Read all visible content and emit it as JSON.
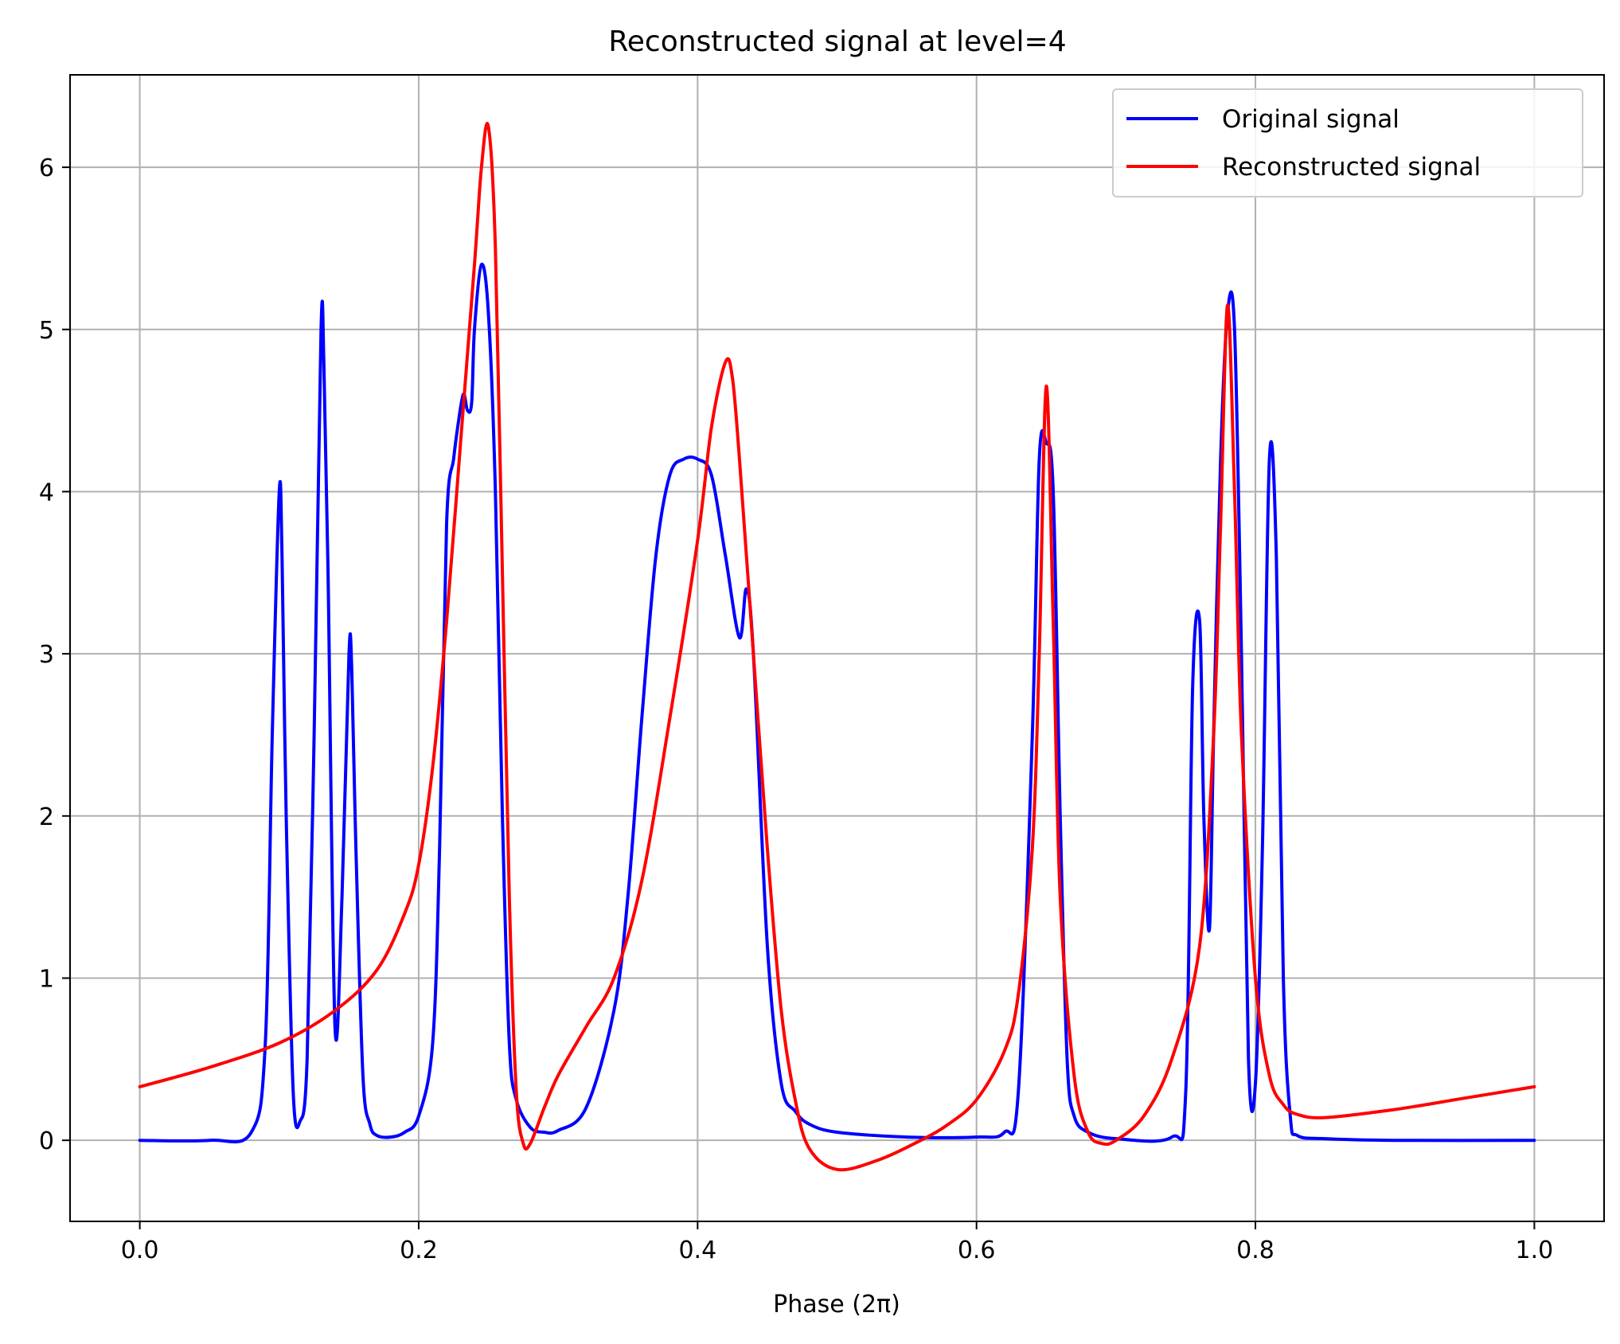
{
  "chart_data": {
    "type": "line",
    "title": "Reconstructed signal at level=4",
    "xlabel": "Phase (2π)",
    "ylabel": "",
    "xlim": [
      -0.05,
      1.05
    ],
    "ylim": [
      -0.5,
      6.57
    ],
    "xticks": [
      0.0,
      0.2,
      0.4,
      0.6,
      0.8,
      1.0
    ],
    "xtick_labels": [
      "0.0",
      "0.2",
      "0.4",
      "0.6",
      "0.8",
      "1.0"
    ],
    "yticks": [
      0,
      1,
      2,
      3,
      4,
      5,
      6
    ],
    "ytick_labels": [
      "0",
      "1",
      "2",
      "3",
      "4",
      "5",
      "6"
    ],
    "grid": true,
    "legend_position": "top-right",
    "series": [
      {
        "name": "Original signal",
        "color": "#0000ff",
        "x": [
          0.0,
          0.05,
          0.08,
          0.09,
          0.095,
          0.1,
          0.102,
          0.105,
          0.11,
          0.115,
          0.12,
          0.125,
          0.13,
          0.132,
          0.135,
          0.14,
          0.145,
          0.15,
          0.152,
          0.155,
          0.16,
          0.165,
          0.17,
          0.18,
          0.19,
          0.2,
          0.21,
          0.215,
          0.22,
          0.225,
          0.228,
          0.232,
          0.235,
          0.238,
          0.24,
          0.245,
          0.25,
          0.255,
          0.26,
          0.265,
          0.27,
          0.28,
          0.29,
          0.3,
          0.32,
          0.34,
          0.35,
          0.36,
          0.37,
          0.38,
          0.39,
          0.4,
          0.41,
          0.42,
          0.43,
          0.435,
          0.44,
          0.45,
          0.46,
          0.47,
          0.48,
          0.5,
          0.55,
          0.6,
          0.62,
          0.63,
          0.64,
          0.645,
          0.65,
          0.655,
          0.66,
          0.665,
          0.67,
          0.68,
          0.7,
          0.74,
          0.75,
          0.755,
          0.76,
          0.763,
          0.767,
          0.77,
          0.775,
          0.78,
          0.785,
          0.79,
          0.795,
          0.8,
          0.805,
          0.81,
          0.815,
          0.82,
          0.825,
          0.83,
          0.85,
          0.9,
          1.0
        ],
        "y": [
          0.0,
          0.0,
          0.05,
          0.6,
          2.5,
          4.0,
          3.6,
          2.0,
          0.3,
          0.12,
          0.5,
          2.5,
          5.0,
          4.8,
          3.5,
          0.7,
          1.5,
          3.0,
          2.9,
          1.8,
          0.4,
          0.1,
          0.03,
          0.02,
          0.05,
          0.15,
          0.6,
          1.8,
          3.8,
          4.2,
          4.4,
          4.6,
          4.5,
          4.55,
          5.0,
          5.4,
          5.1,
          4.0,
          2.0,
          0.6,
          0.25,
          0.08,
          0.05,
          0.06,
          0.2,
          0.8,
          1.5,
          2.6,
          3.6,
          4.1,
          4.2,
          4.2,
          4.1,
          3.6,
          3.1,
          3.4,
          3.0,
          1.2,
          0.35,
          0.18,
          0.1,
          0.05,
          0.02,
          0.02,
          0.05,
          0.3,
          2.5,
          4.2,
          4.3,
          4.0,
          2.0,
          0.5,
          0.15,
          0.05,
          0.01,
          0.02,
          0.3,
          2.8,
          3.2,
          2.0,
          1.3,
          2.5,
          4.2,
          5.1,
          5.0,
          3.0,
          0.5,
          0.35,
          1.8,
          4.2,
          3.6,
          1.0,
          0.15,
          0.03,
          0.01,
          0.0,
          0.0
        ]
      },
      {
        "name": "Reconstructed signal",
        "color": "#ff0000",
        "x": [
          0.0,
          0.05,
          0.1,
          0.14,
          0.17,
          0.19,
          0.2,
          0.21,
          0.22,
          0.23,
          0.24,
          0.245,
          0.25,
          0.255,
          0.26,
          0.265,
          0.27,
          0.275,
          0.28,
          0.29,
          0.3,
          0.32,
          0.34,
          0.36,
          0.38,
          0.4,
          0.41,
          0.42,
          0.425,
          0.43,
          0.44,
          0.45,
          0.46,
          0.47,
          0.48,
          0.5,
          0.53,
          0.56,
          0.58,
          0.6,
          0.62,
          0.63,
          0.64,
          0.645,
          0.65,
          0.655,
          0.66,
          0.67,
          0.68,
          0.69,
          0.7,
          0.72,
          0.74,
          0.76,
          0.77,
          0.775,
          0.78,
          0.785,
          0.79,
          0.8,
          0.81,
          0.82,
          0.83,
          0.85,
          0.9,
          0.95,
          1.0
        ],
        "y": [
          0.33,
          0.45,
          0.6,
          0.8,
          1.05,
          1.4,
          1.7,
          2.3,
          3.2,
          4.3,
          5.4,
          6.0,
          6.25,
          5.5,
          3.5,
          1.5,
          0.3,
          -0.02,
          -0.02,
          0.2,
          0.4,
          0.7,
          1.0,
          1.6,
          2.6,
          3.7,
          4.4,
          4.8,
          4.7,
          4.2,
          3.0,
          1.8,
          0.8,
          0.25,
          -0.05,
          -0.18,
          -0.12,
          0.0,
          0.1,
          0.25,
          0.55,
          0.9,
          1.8,
          3.0,
          4.65,
          3.2,
          1.5,
          0.4,
          0.05,
          -0.02,
          0.0,
          0.15,
          0.5,
          1.2,
          2.5,
          3.8,
          5.15,
          4.0,
          2.5,
          1.0,
          0.4,
          0.22,
          0.16,
          0.14,
          0.19,
          0.26,
          0.33
        ]
      }
    ]
  }
}
